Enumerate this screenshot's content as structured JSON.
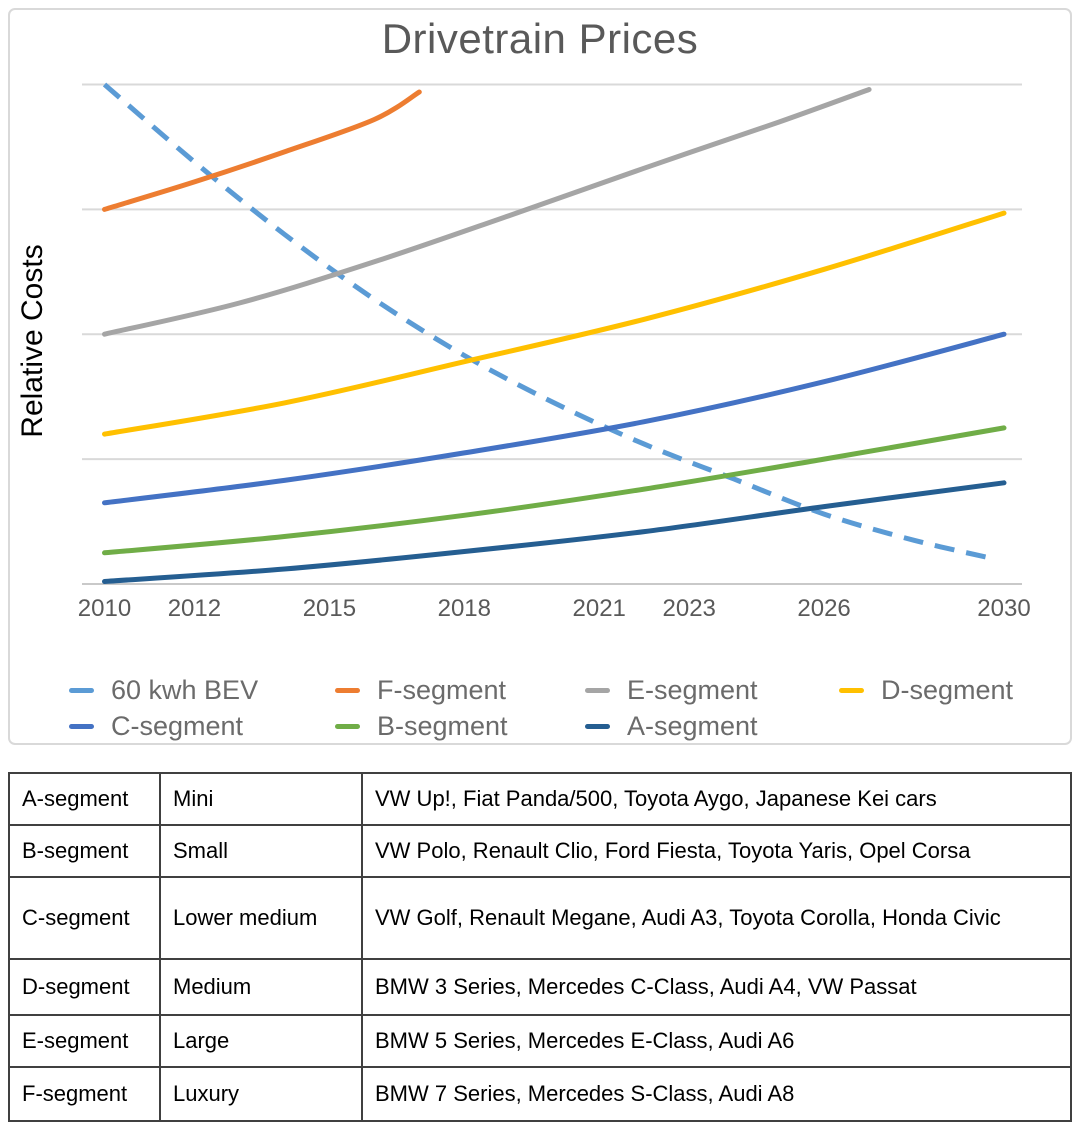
{
  "chart_data": {
    "type": "line",
    "title": "Drivetrain Prices",
    "xlabel": "",
    "ylabel": "Relative Costs",
    "xlim": [
      2009.5,
      2030.4
    ],
    "ylim": [
      0,
      4.1
    ],
    "x_tick_years": [
      2010,
      2012,
      2015,
      2018,
      2021,
      2023,
      2026,
      2030
    ],
    "gridlines_y": [
      0,
      1,
      2,
      3,
      4
    ],
    "grid_on": true,
    "y_tick_labels_shown": false,
    "legend_position": "bottom",
    "grid_color": "#D9D9D9",
    "axis_color": "#C9C9C9",
    "title_color": "#595959",
    "tick_label_color": "#595959",
    "legend_text_color": "#6B6B6B",
    "series": [
      {
        "name": "60 kwh BEV",
        "color": "#5B9BD5",
        "style": "dashed",
        "points": [
          [
            2010,
            4.0
          ],
          [
            2012,
            3.38
          ],
          [
            2014,
            2.8
          ],
          [
            2016,
            2.28
          ],
          [
            2018,
            1.83
          ],
          [
            2020,
            1.45
          ],
          [
            2022,
            1.12
          ],
          [
            2024,
            0.84
          ],
          [
            2026,
            0.56
          ],
          [
            2028,
            0.35
          ],
          [
            2029.8,
            0.2
          ]
        ]
      },
      {
        "name": "F-segment",
        "color": "#ED7D31",
        "style": "solid",
        "points": [
          [
            2010,
            3.0
          ],
          [
            2012,
            3.22
          ],
          [
            2014,
            3.46
          ],
          [
            2016,
            3.72
          ],
          [
            2017,
            3.94
          ]
        ]
      },
      {
        "name": "E-segment",
        "color": "#A5A5A5",
        "style": "solid",
        "points": [
          [
            2010,
            2.0
          ],
          [
            2013,
            2.25
          ],
          [
            2016,
            2.58
          ],
          [
            2019,
            2.95
          ],
          [
            2022,
            3.33
          ],
          [
            2025,
            3.7
          ],
          [
            2027,
            3.96
          ]
        ]
      },
      {
        "name": "D-segment",
        "color": "#FFC000",
        "style": "solid",
        "points": [
          [
            2010,
            1.2
          ],
          [
            2014,
            1.45
          ],
          [
            2018,
            1.78
          ],
          [
            2022,
            2.12
          ],
          [
            2026,
            2.52
          ],
          [
            2030,
            2.97
          ]
        ]
      },
      {
        "name": "C-segment",
        "color": "#4472C4",
        "style": "solid",
        "points": [
          [
            2010,
            0.65
          ],
          [
            2014,
            0.83
          ],
          [
            2018,
            1.05
          ],
          [
            2022,
            1.3
          ],
          [
            2026,
            1.62
          ],
          [
            2030,
            2.0
          ]
        ]
      },
      {
        "name": "B-segment",
        "color": "#70AD47",
        "style": "solid",
        "points": [
          [
            2010,
            0.25
          ],
          [
            2014,
            0.38
          ],
          [
            2018,
            0.55
          ],
          [
            2022,
            0.76
          ],
          [
            2026,
            1.0
          ],
          [
            2030,
            1.25
          ]
        ]
      },
      {
        "name": "A-segment",
        "color": "#255E91",
        "style": "solid",
        "points": [
          [
            2010,
            0.02
          ],
          [
            2014,
            0.12
          ],
          [
            2018,
            0.26
          ],
          [
            2022,
            0.42
          ],
          [
            2026,
            0.62
          ],
          [
            2030,
            0.81
          ]
        ]
      }
    ]
  },
  "table": {
    "rows": [
      {
        "segment": "A-segment",
        "size_class": "Mini",
        "examples": "VW Up!, Fiat Panda/500, Toyota Aygo, Japanese Kei cars"
      },
      {
        "segment": "B-segment",
        "size_class": "Small",
        "examples": "VW Polo, Renault Clio, Ford Fiesta, Toyota Yaris, Opel Corsa"
      },
      {
        "segment": "C-segment",
        "size_class": "Lower medium",
        "examples": "VW Golf, Renault Megane, Audi A3, Toyota Corolla, Honda Civic"
      },
      {
        "segment": "D-segment",
        "size_class": "Medium",
        "examples": "BMW 3 Series, Mercedes C-Class, Audi A4, VW Passat"
      },
      {
        "segment": "E-segment",
        "size_class": "Large",
        "examples": "BMW 5 Series, Mercedes E-Class, Audi A6"
      },
      {
        "segment": "F-segment",
        "size_class": "Luxury",
        "examples": "BMW 7 Series, Mercedes S-Class, Audi A8"
      }
    ]
  }
}
